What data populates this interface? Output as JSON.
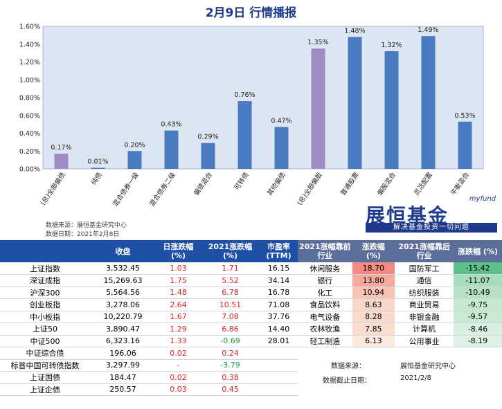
{
  "title": "2月9日  行情播报",
  "chart_data": {
    "type": "bar",
    "categories": [
      "(总)全部偏债",
      "纯债",
      "混合债券一级",
      "混合债券二级",
      "偏债混合",
      "可转债",
      "其他偏债",
      "(总)全部偏股",
      "普通股票",
      "偏股混合",
      "灵活配置",
      "平衡混合"
    ],
    "values": [
      0.17,
      0.01,
      0.2,
      0.43,
      0.29,
      0.76,
      0.47,
      1.35,
      1.48,
      1.32,
      1.49,
      0.53
    ],
    "value_labels": [
      "0.17%",
      "0.01%",
      "0.20%",
      "0.43%",
      "0.29%",
      "0.76%",
      "0.47%",
      "1.35%",
      "1.48%",
      "1.32%",
      "1.49%",
      "0.53%"
    ],
    "highlight_indices": [
      0,
      7
    ],
    "ylim": [
      0,
      1.6
    ],
    "yticks": [
      "0.00%",
      "0.20%",
      "0.40%",
      "0.60%",
      "0.80%",
      "1.00%",
      "1.20%",
      "1.40%",
      "1.60%"
    ],
    "bar_color": "#4a7bc0",
    "highlight_color": "#a08bc4",
    "plot_bg": "#dce6f2",
    "grid": false
  },
  "source": {
    "line1": "数据来源：展恒基金研究中心",
    "line2": "数据日期：2021年2月8日"
  },
  "logo": {
    "my": "myfund",
    "main": "展恒基金",
    "sub": "解决基金投资一切问题"
  },
  "index_table": {
    "headers": [
      "",
      "收盘",
      "日涨跌幅\n(%)",
      "2021涨跌幅\n(%)",
      "市盈率\n(TTM)"
    ],
    "rows": [
      {
        "name": "上证指数",
        "close": "3,532.45",
        "day": "1.03",
        "ytd": "1.71",
        "pe": "16.15",
        "day_c": "red",
        "ytd_c": "red"
      },
      {
        "name": "深证成指",
        "close": "15,269.63",
        "day": "1.75",
        "ytd": "5.52",
        "pe": "34.14",
        "day_c": "red",
        "ytd_c": "red"
      },
      {
        "name": "沪深300",
        "close": "5,564.56",
        "day": "1.48",
        "ytd": "6.78",
        "pe": "16.78",
        "day_c": "red",
        "ytd_c": "red"
      },
      {
        "name": "创业板指",
        "close": "3,278.06",
        "day": "2.64",
        "ytd": "10.51",
        "pe": "71.08",
        "day_c": "red",
        "ytd_c": "red"
      },
      {
        "name": "中小板指",
        "close": "10,220.79",
        "day": "1.67",
        "ytd": "7.08",
        "pe": "37.76",
        "day_c": "red",
        "ytd_c": "red"
      },
      {
        "name": "上证50",
        "close": "3,890.47",
        "day": "1.29",
        "ytd": "6.86",
        "pe": "14.40",
        "day_c": "red",
        "ytd_c": "red"
      },
      {
        "name": "中证500",
        "close": "6,323.16",
        "day": "1.33",
        "ytd": "-0.69",
        "pe": "28.01",
        "day_c": "red",
        "ytd_c": "green"
      },
      {
        "name": "中证综合债",
        "close": "196.06",
        "day": "0.02",
        "ytd": "0.24",
        "pe": "",
        "day_c": "red",
        "ytd_c": "red"
      },
      {
        "name": "标普中国可转债指数",
        "close": "3,297.99",
        "day": "-",
        "ytd": "-3.79",
        "pe": "",
        "day_c": "red",
        "ytd_c": "green"
      },
      {
        "name": "上证国债",
        "close": "184.47",
        "day": "0.02",
        "ytd": "0.38",
        "pe": "",
        "day_c": "red",
        "ytd_c": "red"
      },
      {
        "name": "上证企债",
        "close": "250.57",
        "day": "0.03",
        "ytd": "0.45",
        "pe": "",
        "day_c": "red",
        "ytd_c": "red"
      }
    ]
  },
  "industry_table": {
    "headers": [
      "2021涨幅靠前\n行业",
      "涨跌幅\n(%)",
      "2021涨幅靠后\n行业",
      "涨跌幅 (%)"
    ],
    "rows": [
      {
        "top": "休闲服务",
        "top_v": "18.70",
        "top_bg": "#f28b82",
        "bot": "国防军工",
        "bot_v": "-15.42",
        "bot_bg": "#5cc08a"
      },
      {
        "top": "银行",
        "top_v": "13.80",
        "top_bg": "#f6aa9e",
        "bot": "通信",
        "bot_v": "-11.07",
        "bot_bg": "#a8dcba"
      },
      {
        "top": "化工",
        "top_v": "10.94",
        "top_bg": "#f8c2b4",
        "bot": "纺织服装",
        "bot_v": "-10.49",
        "bot_bg": "#b6e1c5"
      },
      {
        "top": "食品饮料",
        "top_v": "8.63",
        "top_bg": "#fad6c8",
        "bot": "商业贸易",
        "bot_v": "-9.75",
        "bot_bg": "#c6e8d1"
      },
      {
        "top": "电气设备",
        "top_v": "8.28",
        "top_bg": "#fad9cb",
        "bot": "非银金融",
        "bot_v": "-9.57",
        "bot_bg": "#c9e9d3"
      },
      {
        "top": "农林牧渔",
        "top_v": "7.85",
        "top_bg": "#fbddd0",
        "bot": "计算机",
        "bot_v": "-8.46",
        "bot_bg": "#d8efe0"
      },
      {
        "top": "轻工制造",
        "top_v": "6.13",
        "top_bg": "#fde8dc",
        "bot": "公用事业",
        "bot_v": "-8.19",
        "bot_bg": "#dcf1e3"
      }
    ]
  },
  "footer": {
    "src_label": "数据来源：",
    "src_value": "展恒基金研究中心",
    "date_label": "数据截止日期：",
    "date_value": "2021/2/8"
  }
}
